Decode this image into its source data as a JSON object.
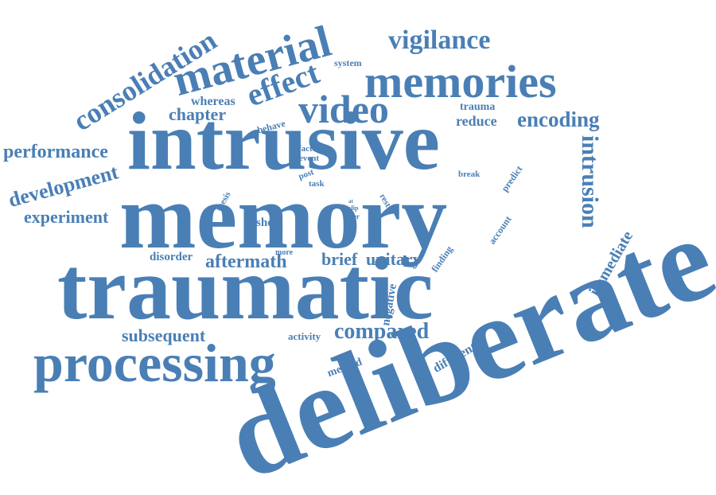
{
  "cloud": {
    "color": "#4a7fb5",
    "words": {
      "deliberate": "deliberate",
      "traumatic": "traumatic",
      "memory": "memory",
      "intrusive": "intrusive",
      "processing": "processing",
      "memories": "memories",
      "material": "material",
      "video": "video",
      "consolidation": "consolidation",
      "vigilance": "vigilance",
      "effect": "effect",
      "compared": "compared",
      "intrusion": "intrusion",
      "encoding": "encoding",
      "development": "development",
      "performance": "performance",
      "experiment": "experiment",
      "aftermath": "aftermath",
      "subsequent": "subsequent",
      "chapter": "chapter",
      "brief": "brief",
      "unitary": "unitary",
      "immediate": "immediate",
      "reduce": "reduce",
      "whereas": "whereas",
      "short": "short",
      "disorder": "disorder",
      "negative": "negative",
      "different": "different",
      "activity": "activity",
      "method": "method",
      "trauma": "trauma",
      "system": "system",
      "behave": "behave",
      "factor": "factor",
      "event": "event",
      "post": "post",
      "task": "task",
      "thesis": "thesis",
      "break": "break",
      "predict": "predict",
      "rest": "rest",
      "account": "account",
      "finding": "finding",
      "more": "more",
      "clip": "clip",
      "alter": "alter",
      "at": "at"
    }
  }
}
